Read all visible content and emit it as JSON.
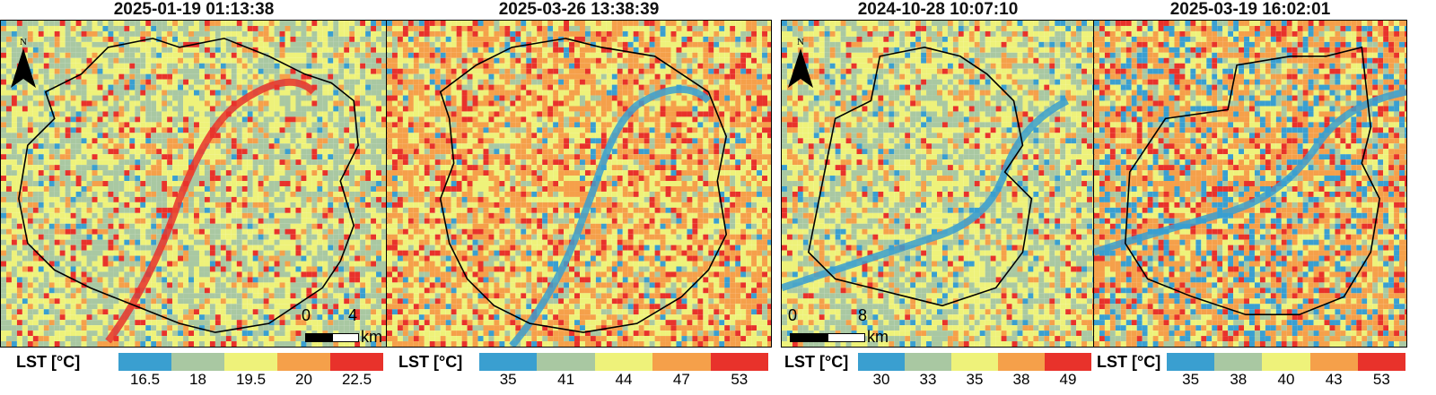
{
  "panels": [
    {
      "title": "2025-01-19 01:13:38",
      "legend_label": "LST [°C]",
      "legend": [
        "16.5",
        "18",
        "19.5",
        "20",
        "22.5"
      ],
      "colors": [
        "#3a9fd0",
        "#a9c8a2",
        "#eef27a",
        "#f5a04a",
        "#e8322b"
      ],
      "palette_weights": [
        0.04,
        0.4,
        0.38,
        0.1,
        0.08
      ],
      "scale": {
        "zero": "0",
        "end": "4",
        "unit": "km"
      },
      "north": "N"
    },
    {
      "title": "2025-03-26 13:38:39",
      "legend_label": "LST [°C]",
      "legend": [
        "35",
        "41",
        "44",
        "47",
        "53"
      ],
      "colors": [
        "#3a9fd0",
        "#a9c8a2",
        "#eef27a",
        "#f5a04a",
        "#e8322b"
      ],
      "palette_weights": [
        0.05,
        0.1,
        0.33,
        0.4,
        0.12
      ]
    },
    {
      "title": "2024-10-28 10:07:10",
      "legend_label": "LST [°C]",
      "legend": [
        "30",
        "33",
        "35",
        "38",
        "49"
      ],
      "colors": [
        "#3a9fd0",
        "#a9c8a2",
        "#eef27a",
        "#f5a04a",
        "#e8322b"
      ],
      "palette_weights": [
        0.05,
        0.38,
        0.38,
        0.14,
        0.05
      ],
      "scale": {
        "zero": "0",
        "end": "8",
        "unit": "km"
      },
      "north": "N"
    },
    {
      "title": "2025-03-19 16:02:01",
      "legend_label": "LST [°C]",
      "legend": [
        "35",
        "38",
        "40",
        "43",
        "53"
      ],
      "colors": [
        "#3a9fd0",
        "#a9c8a2",
        "#eef27a",
        "#f5a04a",
        "#e8322b"
      ],
      "palette_weights": [
        0.18,
        0.12,
        0.2,
        0.38,
        0.12
      ]
    }
  ]
}
